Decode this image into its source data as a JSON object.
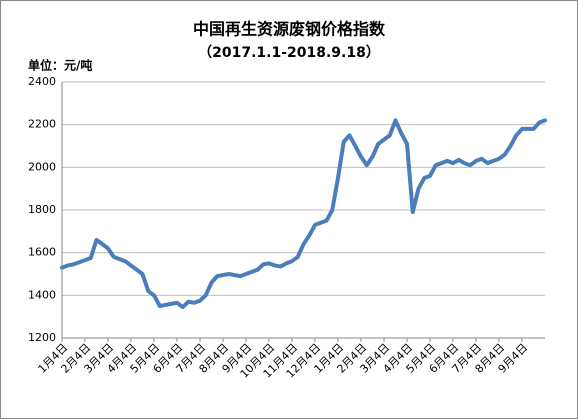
{
  "chart_data": {
    "type": "line",
    "title": "中国再生资源废钢价格指数",
    "subtitle": "（2017.1.1-2018.9.18）",
    "y_label": "单位：元/吨",
    "categories": [
      "1月4日",
      null,
      null,
      null,
      "2月4日",
      null,
      null,
      null,
      "3月4日",
      null,
      null,
      null,
      "4月4日",
      null,
      null,
      null,
      "5月4日",
      null,
      null,
      null,
      "6月4日",
      null,
      null,
      null,
      "7月4日",
      null,
      null,
      null,
      "8月4日",
      null,
      null,
      null,
      "9月4日",
      null,
      null,
      null,
      "10月4日",
      null,
      null,
      null,
      "11月4日",
      null,
      null,
      null,
      "12月4日",
      null,
      null,
      null,
      "1月4日",
      null,
      null,
      null,
      "2月4日",
      null,
      null,
      null,
      "3月4日",
      null,
      null,
      null,
      "4月4日",
      null,
      null,
      null,
      "5月4日",
      null,
      null,
      null,
      "6月4日",
      null,
      null,
      null,
      "7月4日",
      null,
      null,
      null,
      "8月4日",
      null,
      null,
      null,
      "9月4日",
      null,
      null,
      null,
      null
    ],
    "series": [
      {
        "name": "废钢价格指数",
        "color": "#4a7ebb",
        "values": [
          1530,
          1540,
          1545,
          1555,
          1565,
          1575,
          1660,
          1640,
          1620,
          1580,
          1570,
          1560,
          1540,
          1520,
          1500,
          1420,
          1400,
          1350,
          1355,
          1360,
          1365,
          1345,
          1370,
          1365,
          1375,
          1400,
          1460,
          1490,
          1495,
          1500,
          1495,
          1490,
          1500,
          1510,
          1520,
          1545,
          1550,
          1540,
          1535,
          1550,
          1560,
          1580,
          1640,
          1680,
          1730,
          1740,
          1750,
          1800,
          1950,
          2120,
          2150,
          2100,
          2050,
          2010,
          2050,
          2110,
          2130,
          2150,
          2220,
          2160,
          2110,
          1790,
          1900,
          1950,
          1960,
          2010,
          2020,
          2030,
          2020,
          2035,
          2020,
          2010,
          2030,
          2040,
          2020,
          2030,
          2040,
          2060,
          2100,
          2150,
          2180,
          2180,
          2180,
          2210,
          2220
        ]
      }
    ],
    "ylim": [
      1200,
      2400
    ],
    "yticks": [
      1200,
      1400,
      1600,
      1800,
      2000,
      2200,
      2400
    ],
    "grid": true
  }
}
